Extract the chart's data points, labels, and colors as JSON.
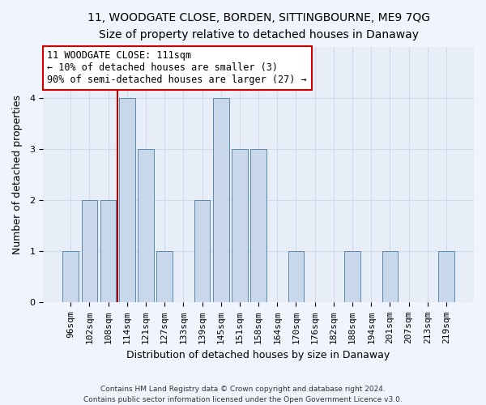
{
  "title1": "11, WOODGATE CLOSE, BORDEN, SITTINGBOURNE, ME9 7QG",
  "title2": "Size of property relative to detached houses in Danaway",
  "xlabel": "Distribution of detached houses by size in Danaway",
  "ylabel": "Number of detached properties",
  "categories": [
    "96sqm",
    "102sqm",
    "108sqm",
    "114sqm",
    "121sqm",
    "127sqm",
    "133sqm",
    "139sqm",
    "145sqm",
    "151sqm",
    "158sqm",
    "164sqm",
    "170sqm",
    "176sqm",
    "182sqm",
    "188sqm",
    "194sqm",
    "201sqm",
    "207sqm",
    "213sqm",
    "219sqm"
  ],
  "values": [
    1,
    2,
    2,
    4,
    3,
    1,
    0,
    2,
    4,
    3,
    3,
    0,
    1,
    0,
    0,
    1,
    0,
    1,
    0,
    0,
    1
  ],
  "bar_color": "#c8d8ea",
  "bar_edge_color": "#5b8ab0",
  "annotation_line_color": "#aa0000",
  "annotation_box_color": "#ffffff",
  "annotation_box_edge_color": "#cc0000",
  "annotation_box_text": "11 WOODGATE CLOSE: 111sqm\n← 10% of detached houses are smaller (3)\n90% of semi-detached houses are larger (27) →",
  "ylim": [
    0,
    5
  ],
  "yticks": [
    0,
    1,
    2,
    3,
    4
  ],
  "grid_color": "#d0daea",
  "plot_bg_color": "#e8eef8",
  "fig_bg_color": "#f0f4fc",
  "title1_fontsize": 10,
  "title2_fontsize": 9,
  "axis_label_fontsize": 9,
  "tick_fontsize": 8,
  "footer1": "Contains HM Land Registry data © Crown copyright and database right 2024.",
  "footer2": "Contains public sector information licensed under the Open Government Licence v3.0.",
  "prop_line_index": 3
}
